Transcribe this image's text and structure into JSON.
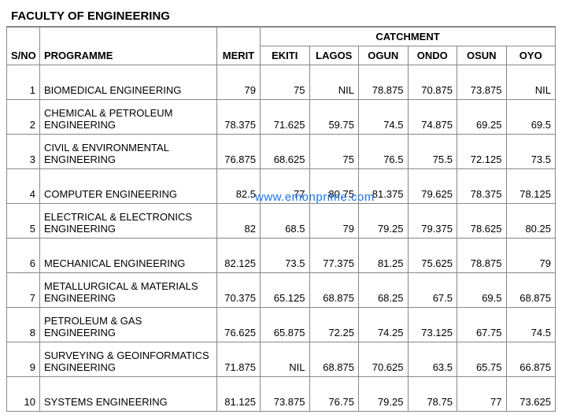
{
  "title": "FACULTY OF ENGINEERING",
  "headers": {
    "sno": "S/NO",
    "programme": "PROGRAMME",
    "merit": "MERIT",
    "catchment": "CATCHMENT",
    "ekiti": "EKITI",
    "lagos": "LAGOS",
    "ogun": "OGUN",
    "ondo": "ONDO",
    "osun": "OSUN",
    "oyo": "OYO"
  },
  "watermark": "www.emonprime.com",
  "watermark_color": "#1a73e8",
  "rows": [
    {
      "sno": "1",
      "programme": "BIOMEDICAL ENGINEERING",
      "merit": "79",
      "ekiti": "75",
      "lagos": "NIL",
      "ogun": "78.875",
      "ondo": "70.875",
      "osun": "73.875",
      "oyo": "NIL"
    },
    {
      "sno": "2",
      "programme": "CHEMICAL & PETROLEUM ENGINEERING",
      "merit": "78.375",
      "ekiti": "71.625",
      "lagos": "59.75",
      "ogun": "74.5",
      "ondo": "74.875",
      "osun": "69.25",
      "oyo": "69.5"
    },
    {
      "sno": "3",
      "programme": "CIVIL & ENVIRONMENTAL ENGINEERING",
      "merit": "76.875",
      "ekiti": "68.625",
      "lagos": "75",
      "ogun": "76.5",
      "ondo": "75.5",
      "osun": "72.125",
      "oyo": "73.5"
    },
    {
      "sno": "4",
      "programme": "COMPUTER ENGINEERING",
      "merit": "82.5",
      "ekiti": "77",
      "lagos": "80.75",
      "ogun": "81.375",
      "ondo": "79.625",
      "osun": "78.375",
      "oyo": "78.125"
    },
    {
      "sno": "5",
      "programme": "ELECTRICAL & ELECTRONICS ENGINEERING",
      "merit": "82",
      "ekiti": "68.5",
      "lagos": "79",
      "ogun": "79.25",
      "ondo": "79.375",
      "osun": "78.625",
      "oyo": "80.25"
    },
    {
      "sno": "6",
      "programme": "MECHANICAL ENGINEERING",
      "merit": "82.125",
      "ekiti": "73.5",
      "lagos": "77.375",
      "ogun": "81.25",
      "ondo": "75.625",
      "osun": "78.875",
      "oyo": "79"
    },
    {
      "sno": "7",
      "programme": "METALLURGICAL & MATERIALS ENGINEERING",
      "merit": "70.375",
      "ekiti": "65.125",
      "lagos": "68.875",
      "ogun": "68.25",
      "ondo": "67.5",
      "osun": "69.5",
      "oyo": "68.875"
    },
    {
      "sno": "8",
      "programme": "PETROLEUM & GAS ENGINEERING",
      "merit": "76.625",
      "ekiti": "65.875",
      "lagos": "72.25",
      "ogun": "74.25",
      "ondo": "73.125",
      "osun": "67.75",
      "oyo": "74.5"
    },
    {
      "sno": "9",
      "programme": "SURVEYING & GEOINFORMATICS ENGINEERING",
      "merit": "71.875",
      "ekiti": "NIL",
      "lagos": "68.875",
      "ogun": "70.625",
      "ondo": "63.5",
      "osun": "65.75",
      "oyo": "66.875"
    },
    {
      "sno": "10",
      "programme": "SYSTEMS ENGINEERING",
      "merit": "81.125",
      "ekiti": "73.875",
      "lagos": "76.75",
      "ogun": "79.25",
      "ondo": "78.75",
      "osun": "77",
      "oyo": "73.625"
    }
  ]
}
